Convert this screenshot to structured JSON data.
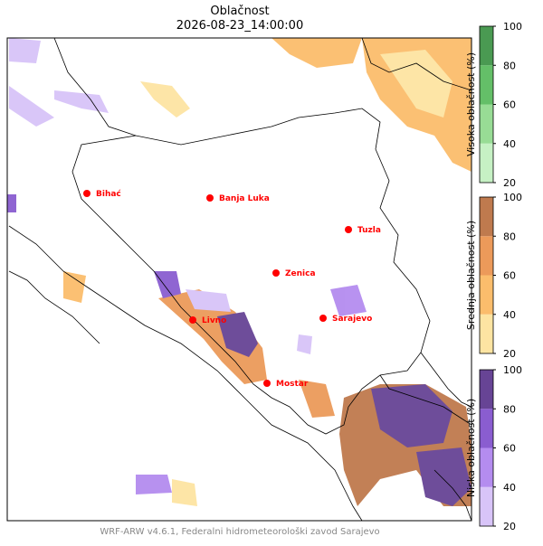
{
  "title": "Oblačnost",
  "subtitle": "2026-08-23_14:00:00",
  "cities": [
    "Bihać",
    "Banja Luka",
    "Tuzla",
    "Zenica",
    "Livno",
    "Sarajevo",
    "Mostar"
  ],
  "city_color": "#ff0000",
  "colorbars": [
    {
      "label": "Visoka oblačnost (%)",
      "ticks": [
        20,
        40,
        60,
        80,
        100
      ],
      "colors": [
        "#c6f1c4",
        "#98dc95",
        "#64bf68",
        "#4a9a52"
      ]
    },
    {
      "label": "Srednja oblačnost (%)",
      "ticks": [
        20,
        40,
        60,
        80,
        100
      ],
      "colors": [
        "#fde4a2",
        "#fbbd6c",
        "#ec9a5a",
        "#bf7a4e"
      ]
    },
    {
      "label": "Niska oblačnost (%)",
      "ticks": [
        20,
        40,
        60,
        80,
        100
      ],
      "colors": [
        "#d8c4f8",
        "#b48cef",
        "#8a5dd0",
        "#674495"
      ]
    }
  ],
  "footer": "WRF-ARW v4.6.1, Federalni hidrometeorološki zavod Sarajevo"
}
